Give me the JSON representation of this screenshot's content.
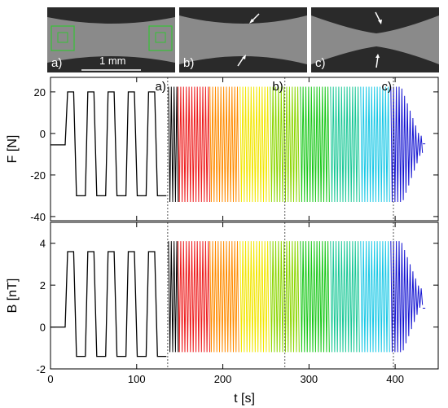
{
  "images": [
    {
      "label": "a)",
      "scalebar": "1 mm"
    },
    {
      "label": "b)"
    },
    {
      "label": "c)"
    }
  ],
  "chart_data": [
    {
      "type": "line",
      "ylabel": "F [N]",
      "xlabel": "",
      "xlim": [
        0,
        450
      ],
      "ylim": [
        -42,
        27
      ],
      "yticks": [
        -40,
        -20,
        0,
        20
      ],
      "xticks": [
        0,
        100,
        200,
        300,
        400
      ],
      "baseline": -5.5,
      "initial_cycles": {
        "count": 5,
        "start": 17,
        "period": 23.5,
        "max": 20,
        "min": -30
      },
      "dense_cycles": {
        "start": 137,
        "end": 432,
        "period": 3.2,
        "max": 22.5,
        "min": -33
      },
      "tail_level": -5,
      "markers": [
        {
          "label": "a)",
          "x": 136
        },
        {
          "label": "b)",
          "x": 272
        },
        {
          "label": "c)",
          "x": 398
        }
      ],
      "color_segments": [
        {
          "from": 137,
          "to": 148,
          "color": "#000000"
        },
        {
          "from": 148,
          "to": 185,
          "color": "#ee1c1c"
        },
        {
          "from": 185,
          "to": 220,
          "color": "#ff8c00"
        },
        {
          "from": 220,
          "to": 255,
          "color": "#f2e600"
        },
        {
          "from": 255,
          "to": 290,
          "color": "#8cd600"
        },
        {
          "from": 290,
          "to": 325,
          "color": "#18c818"
        },
        {
          "from": 325,
          "to": 360,
          "color": "#18c896"
        },
        {
          "from": 360,
          "to": 395,
          "color": "#18c8e6"
        },
        {
          "from": 395,
          "to": 432,
          "color": "#1414d2"
        }
      ]
    },
    {
      "type": "line",
      "ylabel": "B [nT]",
      "xlabel": "t [s]",
      "xlim": [
        0,
        450
      ],
      "ylim": [
        -2,
        5
      ],
      "yticks": [
        -2,
        0,
        2,
        4
      ],
      "xticks": [
        0,
        100,
        200,
        300,
        400
      ],
      "xticklabels": [
        "0",
        "100",
        "200",
        "300",
        "400"
      ],
      "baseline": 0,
      "initial_cycles": {
        "count": 5,
        "start": 17,
        "period": 23.5,
        "max": 3.6,
        "min": -1.4
      },
      "dense_cycles": {
        "start": 137,
        "end": 432,
        "period": 3.2,
        "max": 4.1,
        "min": -1.2
      },
      "tail_level": 0.9,
      "markers": [
        {
          "x": 136
        },
        {
          "x": 272
        },
        {
          "x": 398
        }
      ],
      "color_segments": [
        {
          "from": 137,
          "to": 148,
          "color": "#000000"
        },
        {
          "from": 148,
          "to": 185,
          "color": "#ee1c1c"
        },
        {
          "from": 185,
          "to": 220,
          "color": "#ff8c00"
        },
        {
          "from": 220,
          "to": 255,
          "color": "#f2e600"
        },
        {
          "from": 255,
          "to": 290,
          "color": "#8cd600"
        },
        {
          "from": 290,
          "to": 325,
          "color": "#18c818"
        },
        {
          "from": 325,
          "to": 360,
          "color": "#18c896"
        },
        {
          "from": 360,
          "to": 395,
          "color": "#18c8e6"
        },
        {
          "from": 395,
          "to": 432,
          "color": "#1414d2"
        }
      ]
    }
  ]
}
